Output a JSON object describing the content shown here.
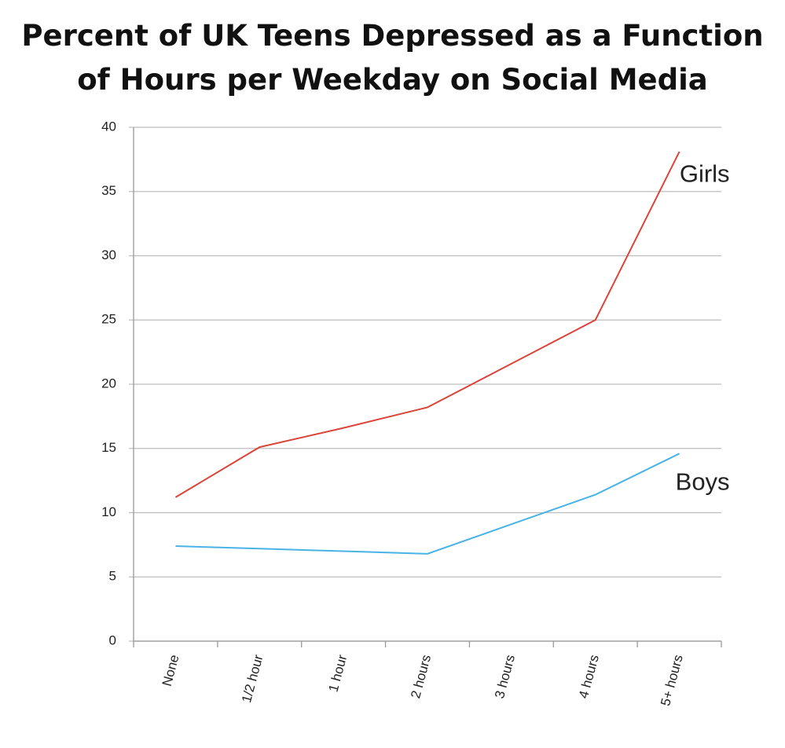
{
  "chart_data": {
    "type": "line",
    "title": "Percent of UK Teens Depressed as a Function of Hours per Weekday on Social Media",
    "categories": [
      "None",
      "1/2 hour",
      "1 hour",
      "2 hours",
      "3 hours",
      "4 hours",
      "5+ hours"
    ],
    "series": [
      {
        "name": "Girls",
        "color": "#d9453a",
        "values": [
          11.2,
          15.1,
          16.6,
          18.2,
          21.6,
          25,
          38.1
        ]
      },
      {
        "name": "Boys",
        "color": "#4ab3e6",
        "values": [
          7.4,
          7.2,
          7.0,
          6.8,
          9.1,
          11.4,
          14.6
        ]
      }
    ],
    "ylim": [
      0,
      40
    ],
    "yticks": [
      0,
      5,
      10,
      15,
      20,
      25,
      30,
      35,
      40
    ],
    "grid": true
  }
}
